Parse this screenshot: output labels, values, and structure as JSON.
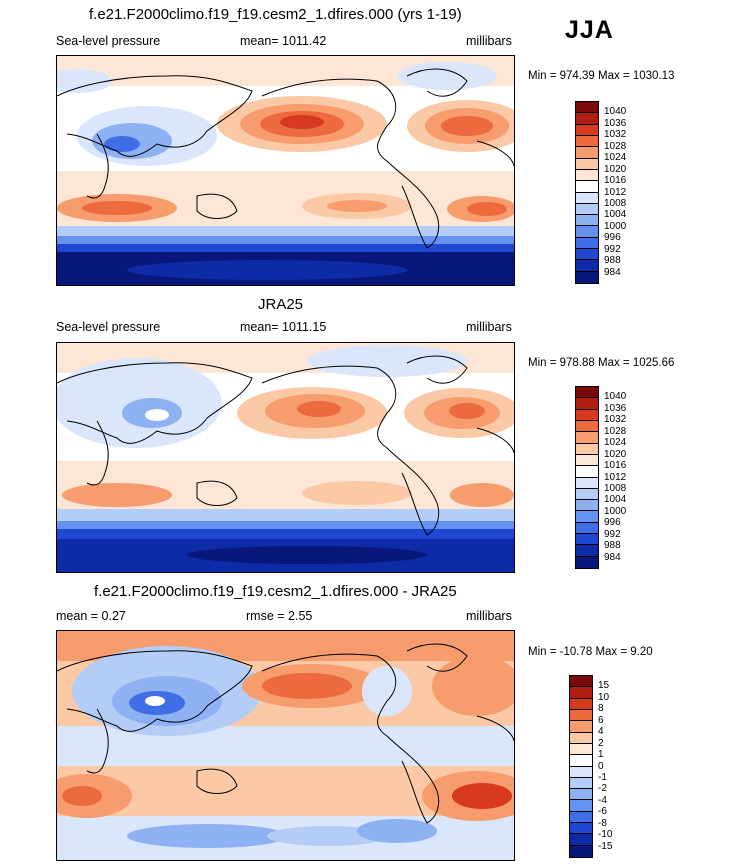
{
  "season": "JJA",
  "panels": [
    {
      "title": "f.e21.F2000climo.f19_f19.cesm2_1.dfires.000 (yrs 1-19)",
      "left_label": "Sea-level pressure",
      "center_label": "mean= 1011.42",
      "right_label": "millibars",
      "minmax": "Min = 974.39 Max = 1030.13"
    },
    {
      "title": "JRA25",
      "left_label": "Sea-level pressure",
      "center_label": "mean= 1011.15",
      "right_label": "millibars",
      "minmax": "Min = 978.88 Max = 1025.66"
    },
    {
      "title": "f.e21.F2000climo.f19_f19.cesm2_1.dfires.000 - JRA25",
      "left_label": "mean =   0.27",
      "center_label": "rmse =   2.55",
      "right_label": "millibars",
      "minmax": "Min = -10.78 Max =   9.20"
    }
  ],
  "colorbars": [
    {
      "colors": [
        "#7a0a0a",
        "#b01e12",
        "#d73a1e",
        "#ec6a3e",
        "#f69c6d",
        "#fbc9a6",
        "#fde6d5",
        "#ffffff",
        "#d9e6fb",
        "#b4cdf6",
        "#8db1f2",
        "#6592ee",
        "#3f6ee6",
        "#1f47d0",
        "#0d2ba6",
        "#08177a"
      ],
      "labels": [
        "1040",
        "1036",
        "1032",
        "1028",
        "1024",
        "1020",
        "1016",
        "1012",
        "1008",
        "1004",
        "1000",
        "996",
        "992",
        "988",
        "984"
      ]
    },
    {
      "colors": [
        "#7a0a0a",
        "#b01e12",
        "#d73a1e",
        "#ec6a3e",
        "#f69c6d",
        "#fbc9a6",
        "#fde6d5",
        "#ffffff",
        "#d9e6fb",
        "#b4cdf6",
        "#8db1f2",
        "#6592ee",
        "#3f6ee6",
        "#1f47d0",
        "#0d2ba6",
        "#08177a"
      ],
      "labels": [
        "1040",
        "1036",
        "1032",
        "1028",
        "1024",
        "1020",
        "1016",
        "1012",
        "1008",
        "1004",
        "1000",
        "996",
        "992",
        "988",
        "984"
      ]
    },
    {
      "colors": [
        "#7a0a0a",
        "#b01e12",
        "#d73a1e",
        "#ec6a3e",
        "#f69c6d",
        "#fbc9a6",
        "#fde6d5",
        "#ffffff",
        "#d9e6fb",
        "#b4cdf6",
        "#8db1f2",
        "#6592ee",
        "#3f6ee6",
        "#1f47d0",
        "#0d2ba6",
        "#08177a"
      ],
      "labels": [
        "15",
        "10",
        "8",
        "6",
        "4",
        "2",
        "1",
        "0",
        "-1",
        "-2",
        "-4",
        "-6",
        "-8",
        "-10",
        "-15"
      ]
    }
  ],
  "chart_data": [
    {
      "type": "heatmap",
      "title": "f.e21.F2000climo.f19_f19.cesm2_1.dfires.000 (yrs 1-19)",
      "variable": "Sea-level pressure",
      "units": "millibars",
      "mean": 1011.42,
      "min": 974.39,
      "max": 1030.13,
      "contour_levels": [
        984,
        988,
        992,
        996,
        1000,
        1004,
        1008,
        1012,
        1016,
        1020,
        1024,
        1028,
        1032,
        1036,
        1040
      ]
    },
    {
      "type": "heatmap",
      "title": "JRA25",
      "variable": "Sea-level pressure",
      "units": "millibars",
      "mean": 1011.15,
      "min": 978.88,
      "max": 1025.66,
      "contour_levels": [
        984,
        988,
        992,
        996,
        1000,
        1004,
        1008,
        1012,
        1016,
        1020,
        1024,
        1028,
        1032,
        1036,
        1040
      ]
    },
    {
      "type": "heatmap",
      "title": "f.e21.F2000climo.f19_f19.cesm2_1.dfires.000 - JRA25",
      "units": "millibars",
      "mean": 0.27,
      "rmse": 2.55,
      "min": -10.78,
      "max": 9.2,
      "contour_levels": [
        -15,
        -10,
        -8,
        -6,
        -4,
        -2,
        -1,
        0,
        1,
        2,
        4,
        6,
        8,
        10,
        15
      ]
    }
  ]
}
